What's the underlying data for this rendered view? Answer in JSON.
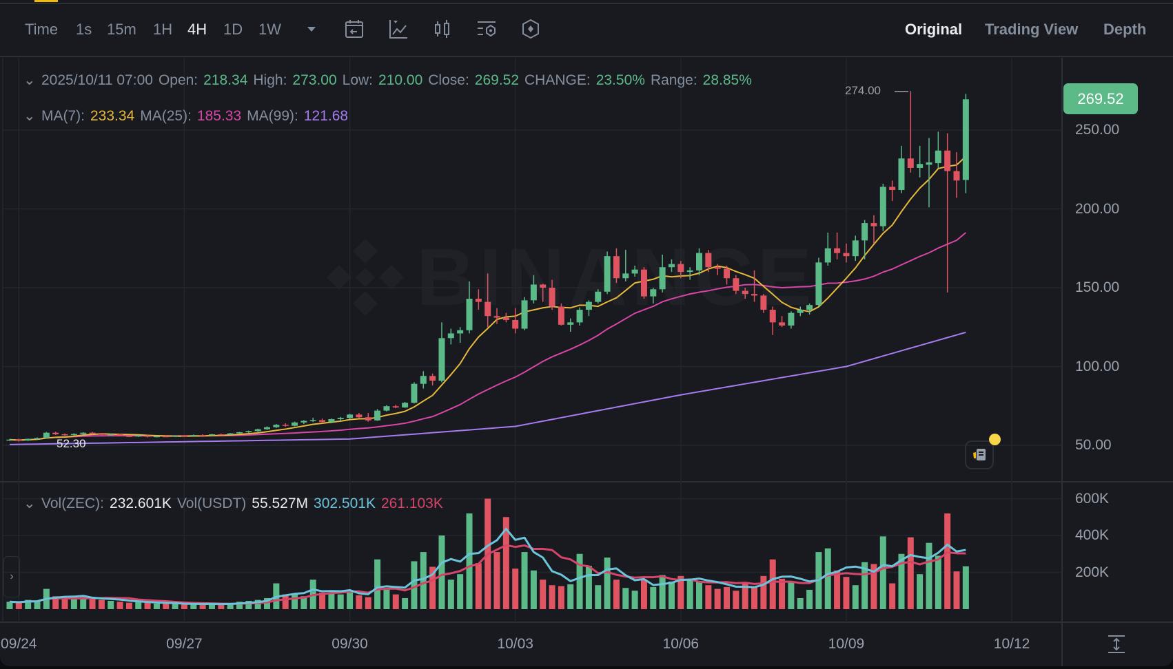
{
  "toolbar": {
    "intervals": [
      {
        "label": "Time",
        "active": false
      },
      {
        "label": "1s",
        "active": false
      },
      {
        "label": "15m",
        "active": false
      },
      {
        "label": "1H",
        "active": false
      },
      {
        "label": "4H",
        "active": true
      },
      {
        "label": "1D",
        "active": false
      },
      {
        "label": "1W",
        "active": false
      }
    ],
    "views": [
      {
        "label": "Original",
        "active": true
      },
      {
        "label": "Trading View",
        "active": false
      },
      {
        "label": "Depth",
        "active": false
      }
    ]
  },
  "legend": {
    "datetime": "2025/10/11 07:00",
    "open_label": "Open:",
    "open": "218.34",
    "high_label": "High:",
    "high": "273.00",
    "low_label": "Low:",
    "low": "210.00",
    "close_label": "Close:",
    "close": "269.52",
    "change_label": "CHANGE:",
    "change": "23.50%",
    "range_label": "Range:",
    "range": "28.85%",
    "ma7_label": "MA(7):",
    "ma7": "233.34",
    "ma25_label": "MA(25):",
    "ma25": "185.33",
    "ma99_label": "MA(99):",
    "ma99": "121.68",
    "vol_label": "Vol(ZEC):",
    "vol": "232.601K",
    "volusdt_label": "Vol(USDT)",
    "volusdt": "55.527M",
    "vol_ma1": "302.501K",
    "vol_ma2": "261.103K"
  },
  "price_tag": "269.52",
  "high_marker": "274.00",
  "low_marker": "52.30",
  "watermark": "BINANCE",
  "colors": {
    "up": "#5CBA89",
    "down": "#E05561",
    "ma7": "#E8B93A",
    "ma25": "#D946A8",
    "ma99": "#A67CF0",
    "volma1": "#6CC4DB",
    "volma2": "#D6456A"
  },
  "chart_data": {
    "type": "candlestick",
    "interval": "4H",
    "price_ticks": [
      "50.00",
      "100.00",
      "150.00",
      "200.00",
      "250.00"
    ],
    "price_tick_values": [
      50,
      100,
      150,
      200,
      250
    ],
    "volume_ticks": [
      "200K",
      "400K",
      "600K"
    ],
    "volume_tick_values": [
      200,
      400,
      600
    ],
    "x_labels": [
      {
        "label": "09/24",
        "index": 1
      },
      {
        "label": "09/27",
        "index": 19
      },
      {
        "label": "09/30",
        "index": 37
      },
      {
        "label": "10/03",
        "index": 55
      },
      {
        "label": "10/06",
        "index": 73
      },
      {
        "label": "10/09",
        "index": 91
      },
      {
        "label": "10/12",
        "index": 109
      }
    ],
    "ma99_points": [
      [
        0,
        50.5
      ],
      [
        37,
        54
      ],
      [
        55,
        62
      ],
      [
        73,
        82
      ],
      [
        91,
        100
      ],
      [
        104,
        121.68
      ]
    ],
    "candles_ohlcv_k": [
      [
        53.2,
        54.0,
        52.9,
        53.6,
        40
      ],
      [
        53.6,
        54.2,
        52.3,
        53.0,
        35
      ],
      [
        53.0,
        54.3,
        52.8,
        54.1,
        50
      ],
      [
        54.1,
        55.0,
        53.6,
        54.6,
        45
      ],
      [
        54.6,
        58.5,
        54.2,
        58.0,
        110
      ],
      [
        58.0,
        58.6,
        56.6,
        57.0,
        70
      ],
      [
        57.0,
        57.5,
        56.0,
        56.5,
        60
      ],
      [
        56.5,
        57.6,
        56.2,
        57.2,
        55
      ],
      [
        57.2,
        58.3,
        56.8,
        58.0,
        65
      ],
      [
        58.0,
        58.5,
        56.9,
        57.3,
        60
      ],
      [
        57.3,
        57.8,
        56.4,
        56.7,
        50
      ],
      [
        56.7,
        57.4,
        56.2,
        57.0,
        45
      ],
      [
        57.0,
        57.3,
        55.8,
        56.0,
        40
      ],
      [
        56.0,
        56.6,
        55.2,
        55.6,
        35
      ],
      [
        55.6,
        56.5,
        55.3,
        56.2,
        40
      ],
      [
        56.2,
        56.5,
        55.0,
        55.4,
        35
      ],
      [
        55.4,
        56.0,
        55.0,
        55.8,
        30
      ],
      [
        55.8,
        56.2,
        55.2,
        55.5,
        30
      ],
      [
        55.5,
        56.3,
        55.3,
        56.1,
        28
      ],
      [
        56.1,
        56.5,
        55.6,
        55.9,
        25
      ],
      [
        55.9,
        56.8,
        55.7,
        56.5,
        30
      ],
      [
        56.5,
        57.0,
        56.0,
        56.3,
        28
      ],
      [
        56.3,
        57.2,
        56.1,
        57.0,
        30
      ],
      [
        57.0,
        57.5,
        56.5,
        56.8,
        25
      ],
      [
        56.8,
        57.8,
        56.6,
        57.6,
        30
      ],
      [
        57.6,
        58.5,
        57.2,
        58.3,
        40
      ],
      [
        58.3,
        59.3,
        57.9,
        59.0,
        45
      ],
      [
        59.0,
        60.5,
        58.5,
        60.2,
        50
      ],
      [
        60.2,
        62.0,
        59.8,
        61.5,
        60
      ],
      [
        61.5,
        63.5,
        61.0,
        63.0,
        140
      ],
      [
        63.0,
        64.0,
        61.8,
        62.4,
        80
      ],
      [
        62.4,
        65.0,
        62.0,
        64.5,
        85
      ],
      [
        64.5,
        66.0,
        63.5,
        65.5,
        70
      ],
      [
        65.5,
        67.5,
        64.8,
        66.0,
        160
      ],
      [
        66.0,
        67.0,
        64.0,
        64.8,
        90
      ],
      [
        64.8,
        67.0,
        64.0,
        66.6,
        85
      ],
      [
        66.6,
        68.0,
        65.5,
        67.4,
        80
      ],
      [
        67.4,
        70.0,
        66.8,
        69.5,
        100
      ],
      [
        69.5,
        70.5,
        67.0,
        67.8,
        75
      ],
      [
        67.8,
        70.5,
        65.0,
        65.8,
        65
      ],
      [
        65.8,
        73.0,
        65.5,
        72.0,
        270
      ],
      [
        72.0,
        75.5,
        71.5,
        74.8,
        110
      ],
      [
        74.8,
        75.8,
        73.5,
        74.0,
        80
      ],
      [
        74.0,
        77.5,
        73.8,
        77.0,
        60
      ],
      [
        77.0,
        90.0,
        76.5,
        89.0,
        260
      ],
      [
        89.0,
        97.0,
        86.0,
        94.0,
        310
      ],
      [
        94.0,
        95.5,
        88.0,
        91.0,
        230
      ],
      [
        91.0,
        128.0,
        90.0,
        118.0,
        400
      ],
      [
        118.0,
        124.0,
        114.0,
        121.0,
        160
      ],
      [
        121.0,
        125.0,
        115.0,
        123.0,
        190
      ],
      [
        123.0,
        154.0,
        121.0,
        143.0,
        520
      ],
      [
        143.0,
        149.0,
        136.0,
        141.0,
        250
      ],
      [
        141.0,
        159.0,
        125.0,
        132.0,
        600
      ],
      [
        132.0,
        137.0,
        127.0,
        131.0,
        310
      ],
      [
        131.0,
        134.0,
        128.0,
        129.5,
        500
      ],
      [
        129.5,
        137.0,
        121.0,
        124.0,
        220
      ],
      [
        124.0,
        144.0,
        123.0,
        142.0,
        310
      ],
      [
        142.0,
        158.0,
        140.0,
        152.0,
        210
      ],
      [
        152.0,
        152.5,
        141.0,
        150.0,
        160
      ],
      [
        150.0,
        155.0,
        136.0,
        138.0,
        130
      ],
      [
        138.0,
        140.0,
        126.0,
        126.5,
        125
      ],
      [
        126.5,
        130.5,
        122.0,
        128.0,
        135
      ],
      [
        128.0,
        137.5,
        126.0,
        136.0,
        300
      ],
      [
        136.0,
        142.0,
        132.0,
        141.0,
        235
      ],
      [
        141.0,
        149.0,
        140.0,
        147.5,
        130
      ],
      [
        147.5,
        173.0,
        146.0,
        170.0,
        280
      ],
      [
        170.0,
        175.0,
        153.0,
        156.0,
        160
      ],
      [
        156.0,
        174.0,
        154.0,
        159.0,
        115
      ],
      [
        159.0,
        164.0,
        157.0,
        161.5,
        100
      ],
      [
        161.5,
        163.0,
        143.0,
        144.5,
        160
      ],
      [
        144.5,
        150.0,
        140.0,
        149.0,
        120
      ],
      [
        149.0,
        171.0,
        147.0,
        163.0,
        185
      ],
      [
        163.0,
        168.0,
        160.0,
        165.0,
        150
      ],
      [
        165.0,
        167.0,
        156.0,
        160.0,
        180
      ],
      [
        160.0,
        163.0,
        155.0,
        161.0,
        165
      ],
      [
        161.0,
        175.0,
        158.0,
        172.0,
        150
      ],
      [
        172.0,
        174.0,
        160.0,
        163.0,
        130
      ],
      [
        163.0,
        165.0,
        158.0,
        162.0,
        110
      ],
      [
        162.0,
        164.0,
        152.0,
        156.0,
        120
      ],
      [
        156.0,
        158.0,
        146.0,
        148.0,
        100
      ],
      [
        148.0,
        150.0,
        143.0,
        146.0,
        145
      ],
      [
        146.0,
        161.0,
        141.0,
        145.0,
        120
      ],
      [
        145.0,
        146.0,
        134.0,
        136.0,
        180
      ],
      [
        136.0,
        138.0,
        120.0,
        128.0,
        270
      ],
      [
        128.0,
        132.0,
        125.0,
        126.0,
        165
      ],
      [
        126.0,
        135.0,
        124.0,
        134.0,
        150
      ],
      [
        134.0,
        138.0,
        132.0,
        136.0,
        60
      ],
      [
        136.0,
        140.0,
        133.0,
        139.0,
        105
      ],
      [
        139.0,
        169.0,
        138.0,
        166.0,
        310
      ],
      [
        166.0,
        185.0,
        164.0,
        175.0,
        330
      ],
      [
        175.0,
        185.0,
        168.0,
        172.0,
        210
      ],
      [
        172.0,
        178.0,
        166.0,
        170.0,
        175
      ],
      [
        170.0,
        183.0,
        167.0,
        180.0,
        130
      ],
      [
        180.0,
        193.0,
        168.0,
        191.0,
        255
      ],
      [
        191.0,
        196.0,
        178.0,
        189.0,
        245
      ],
      [
        189.0,
        216.0,
        186.0,
        214.0,
        395
      ],
      [
        214.0,
        218.0,
        205.0,
        212.0,
        140
      ],
      [
        212.0,
        240.0,
        210.0,
        232.0,
        300
      ],
      [
        232.0,
        274.0,
        223.0,
        226.0,
        390
      ],
      [
        226.0,
        240.0,
        220.0,
        228.5,
        190
      ],
      [
        228.0,
        245.0,
        201.0,
        229.5,
        360
      ],
      [
        229.0,
        249.0,
        226.0,
        237.0,
        290
      ],
      [
        237.0,
        248.0,
        147.0,
        224.0,
        520
      ],
      [
        224.0,
        236.0,
        207.0,
        218.0,
        205
      ],
      [
        218.34,
        273.0,
        210.0,
        269.52,
        232.6
      ]
    ]
  }
}
